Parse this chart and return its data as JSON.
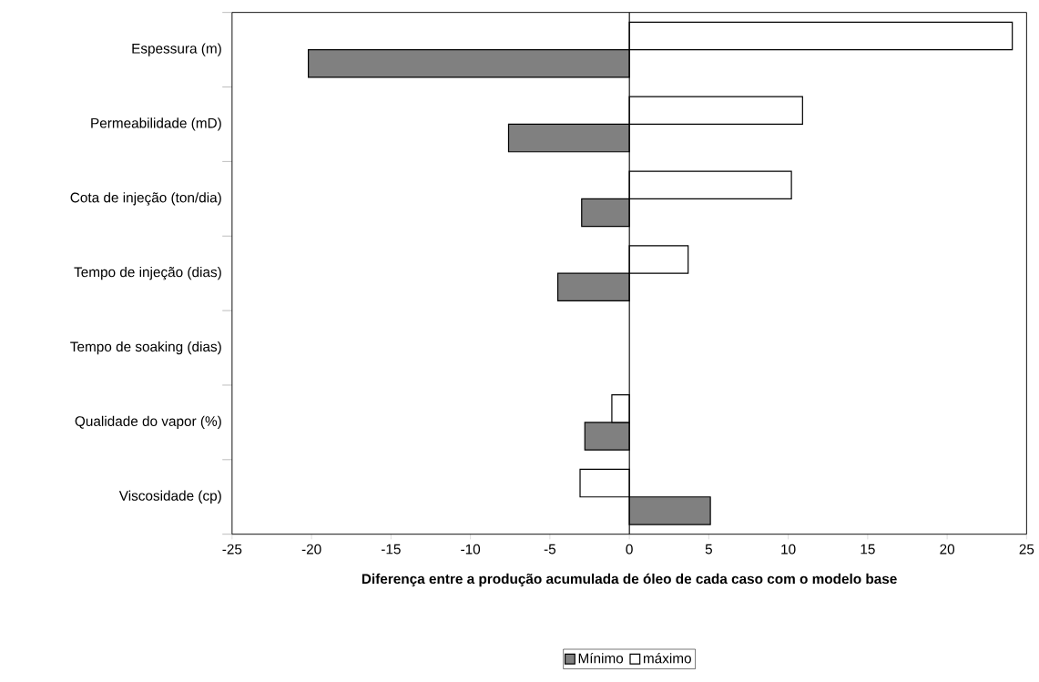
{
  "chart_data": {
    "type": "bar",
    "orientation": "horizontal",
    "xlabel": "Diferença entre a produção acumulada de óleo de cada caso com o modelo base",
    "categories": [
      "Espessura (m)",
      "Permeabilidade (mD)",
      "Cota de injeção (ton/dia)",
      "Tempo de injeção (dias)",
      "Tempo de soaking (dias)",
      "Qualidade do vapor (%)",
      "Viscosidade (cp)"
    ],
    "series": [
      {
        "name": "Mínimo",
        "color": "#808080",
        "values": [
          -20.2,
          -7.6,
          -3.0,
          -4.5,
          null,
          -2.8,
          5.1
        ]
      },
      {
        "name": "máximo",
        "color": "#ffffff",
        "values": [
          24.1,
          10.9,
          10.2,
          3.7,
          null,
          -1.1,
          -3.1
        ]
      }
    ],
    "xlim": [
      -25,
      25
    ],
    "xticks": [
      -25,
      -20,
      -15,
      -10,
      -5,
      0,
      5,
      10,
      15,
      20,
      25
    ],
    "ref_lines": [
      {
        "axis": "x",
        "value": 0,
        "color": "#000000"
      }
    ],
    "legend": "bottom"
  }
}
